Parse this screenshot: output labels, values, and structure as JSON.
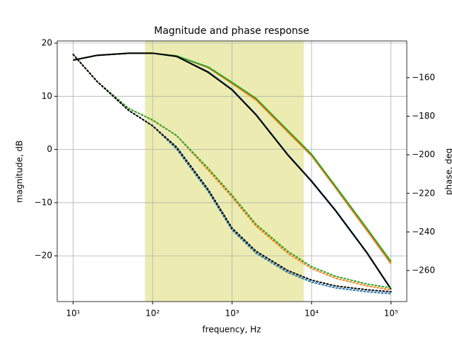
{
  "chart_data": {
    "type": "line",
    "title": "Magnitude and phase response",
    "xlabel": "frequency, Hz",
    "ylabel": "magnitude, dB",
    "y2label": "phase, deg",
    "xscale": "log",
    "grid": true,
    "xlim": [
      6.3,
      158000
    ],
    "ylim": [
      -28.6,
      20.4
    ],
    "y2lim": [
      -276.1,
      -141
    ],
    "xticks": [
      {
        "value": 10,
        "label": "10¹"
      },
      {
        "value": 100,
        "label": "10²"
      },
      {
        "value": 1000,
        "label": "10³"
      },
      {
        "value": 10000,
        "label": "10⁴"
      },
      {
        "value": 100000,
        "label": "10⁵"
      }
    ],
    "yticks": [
      {
        "value": -20,
        "label": "−20"
      },
      {
        "value": -10,
        "label": "−10"
      },
      0,
      10,
      20
    ],
    "y2ticks": [
      {
        "value": -260,
        "label": "−260"
      },
      {
        "value": -240,
        "label": "−240"
      },
      {
        "value": -220,
        "label": "−220"
      },
      {
        "value": -200,
        "label": "−200"
      },
      {
        "value": -180,
        "label": "−180"
      },
      {
        "value": -160,
        "label": "−160"
      }
    ],
    "xspan": [
      80,
      8000
    ],
    "span_color": "#bfbf00",
    "span_alpha": 0.3,
    "x": [
      10,
      20,
      50,
      100,
      200,
      500,
      1000,
      2000,
      5000,
      10000,
      20000,
      50000,
      100000
    ],
    "series": [
      {
        "color": "#1f77b4",
        "linestyle": "solid",
        "values": [
          16.8,
          17.7,
          18.1,
          18.1,
          17.5,
          14.6,
          11.3,
          6.6,
          -0.9,
          -5.9,
          -11.4,
          -19.4,
          -26.2
        ]
      },
      {
        "color": "#ff7f0e",
        "linestyle": "solid",
        "values": [
          16.8,
          17.7,
          18.1,
          18.1,
          17.6,
          15.4,
          12.4,
          9.3,
          3.3,
          -1.2,
          -7.2,
          -15.3,
          -21.5
        ]
      },
      {
        "color": "#2ca02c",
        "linestyle": "solid",
        "values": [
          16.8,
          17.7,
          18.1,
          18.1,
          17.6,
          15.5,
          12.6,
          9.6,
          3.6,
          -0.9,
          -6.9,
          -14.9,
          -21.1
        ]
      },
      {
        "color": "#000000",
        "linestyle": "solid",
        "values": [
          16.8,
          17.7,
          18.1,
          18.1,
          17.5,
          14.5,
          11.2,
          6.5,
          -1,
          -6,
          -11.5,
          -19.5,
          -26.3
        ]
      },
      {
        "color": "#1f77b4",
        "linestyle": "dotted",
        "axis": "y2",
        "values": [
          -148,
          -162,
          -177,
          -185,
          -197,
          -219,
          -239,
          -251,
          -261,
          -266,
          -269,
          -271,
          -272
        ]
      },
      {
        "color": "#ff7f0e",
        "linestyle": "dotted",
        "axis": "y2",
        "values": [
          -148,
          -162,
          -176,
          -182,
          -190,
          -208,
          -222,
          -237,
          -251,
          -259,
          -264,
          -268,
          -270
        ]
      },
      {
        "color": "#2ca02c",
        "linestyle": "dotted",
        "axis": "y2",
        "values": [
          -148,
          -162,
          -176,
          -182,
          -190,
          -207,
          -221,
          -236,
          -250,
          -258,
          -263,
          -267,
          -269
        ]
      },
      {
        "color": "#000000",
        "linestyle": "dotted",
        "axis": "y2",
        "values": [
          -148,
          -162,
          -177,
          -185,
          -196,
          -218,
          -238,
          -250,
          -260,
          -265,
          -268,
          -270,
          -271
        ]
      }
    ]
  }
}
